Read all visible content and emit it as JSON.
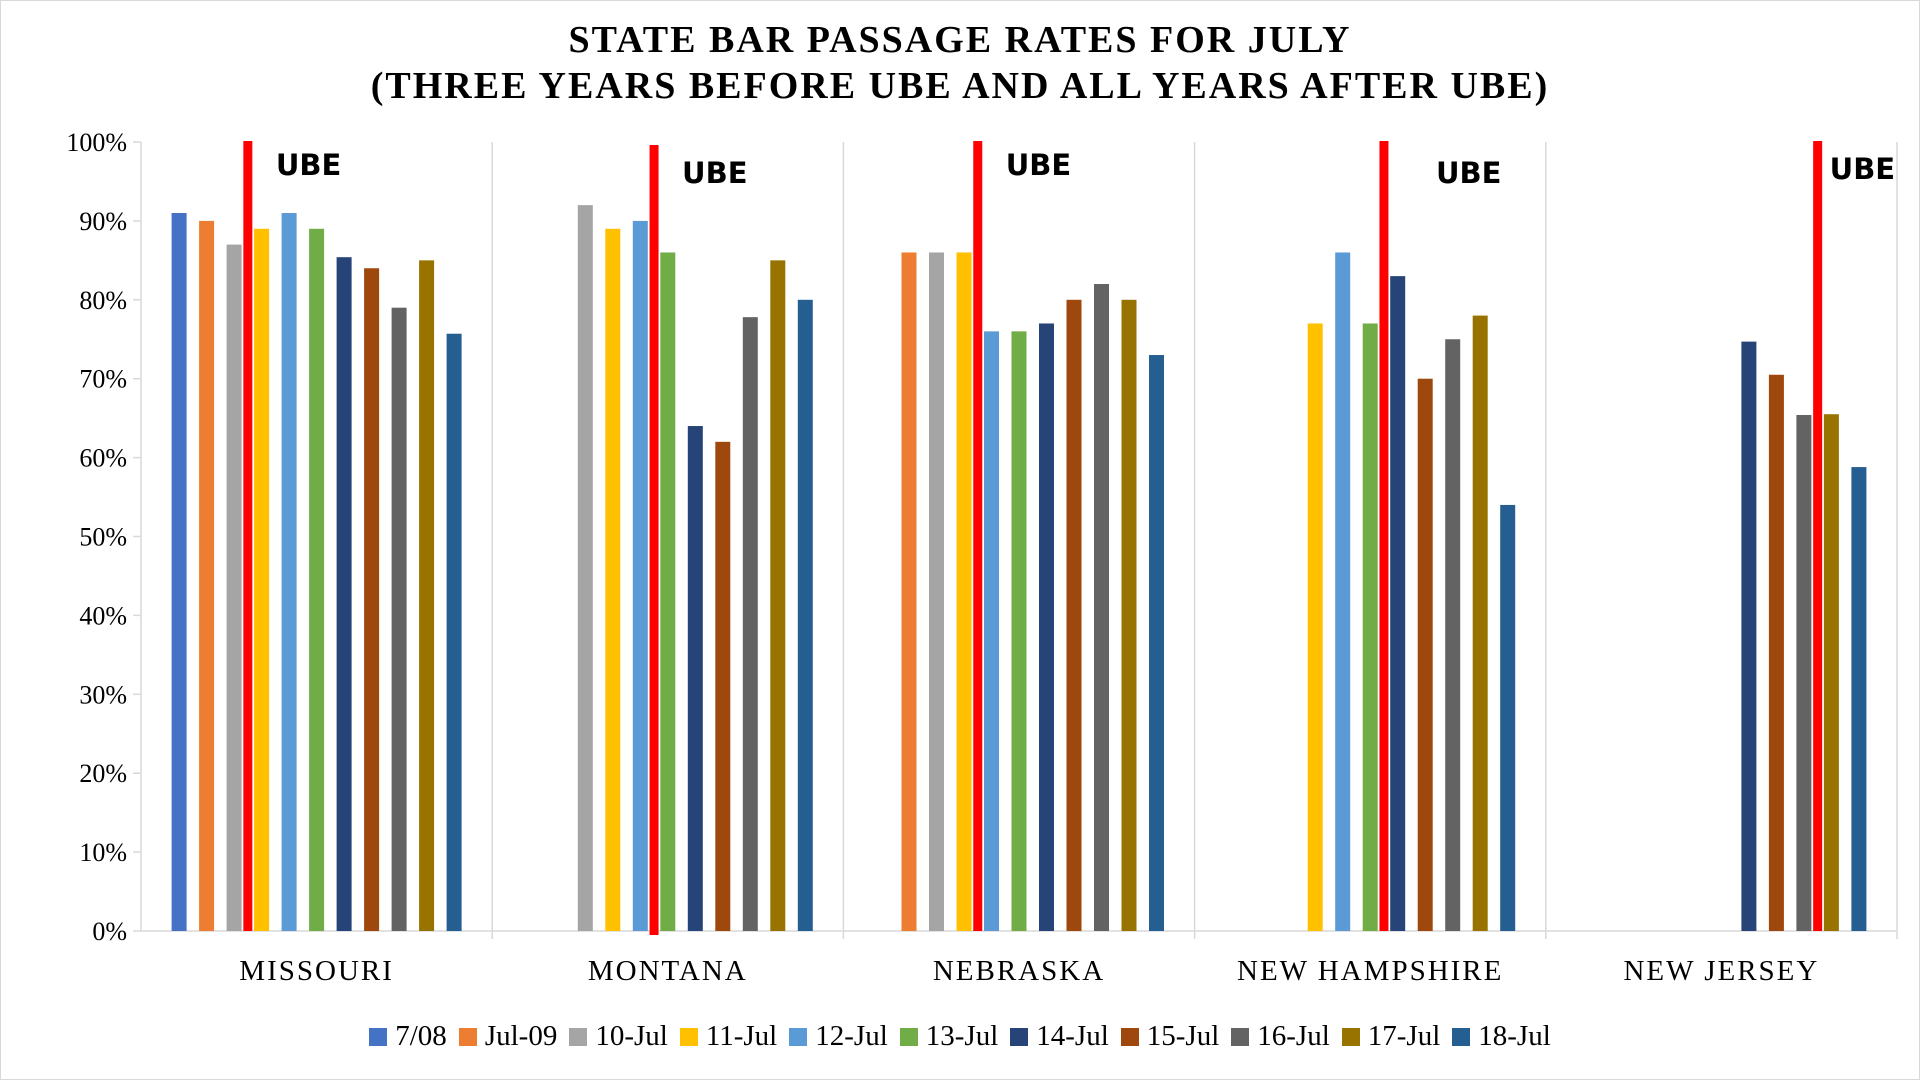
{
  "chart_data": {
    "type": "bar",
    "title": "STATE BAR PASSAGE RATES FOR JULY",
    "subtitle": "(THREE YEARS BEFORE UBE AND ALL YEARS AFTER UBE)",
    "xlabel": "",
    "ylabel": "",
    "ylim": [
      0,
      100
    ],
    "y_ticks": [
      "0%",
      "10%",
      "20%",
      "30%",
      "40%",
      "50%",
      "60%",
      "70%",
      "80%",
      "90%",
      "100%"
    ],
    "grid": "vertical category separators",
    "legend_position": "bottom",
    "categories": [
      "MISSOURI",
      "MONTANA",
      "NEBRASKA",
      "NEW HAMPSHIRE",
      "NEW JERSEY"
    ],
    "series": [
      {
        "name": "7/08",
        "color": "#4472C4",
        "values": [
          91,
          null,
          null,
          null,
          null
        ]
      },
      {
        "name": "Jul-09",
        "color": "#ED7D31",
        "values": [
          90,
          null,
          86,
          null,
          null
        ]
      },
      {
        "name": "10-Jul",
        "color": "#A5A5A5",
        "values": [
          87,
          92,
          86,
          null,
          null
        ]
      },
      {
        "name": "11-Jul",
        "color": "#FFC000",
        "values": [
          89,
          89,
          86,
          77,
          null
        ]
      },
      {
        "name": "12-Jul",
        "color": "#5B9BD5",
        "values": [
          91,
          90,
          76,
          86,
          null
        ]
      },
      {
        "name": "13-Jul",
        "color": "#70AD47",
        "values": [
          89,
          86,
          76,
          77,
          null
        ]
      },
      {
        "name": "14-Jul",
        "color": "#264478",
        "values": [
          85.4,
          64,
          77,
          83,
          74.7
        ]
      },
      {
        "name": "15-Jul",
        "color": "#9E480E",
        "values": [
          84,
          62,
          80,
          70,
          70.5
        ]
      },
      {
        "name": "16-Jul",
        "color": "#636363",
        "values": [
          79,
          77.8,
          82,
          75,
          65.4
        ]
      },
      {
        "name": "17-Jul",
        "color": "#997300",
        "values": [
          85,
          85,
          80,
          78,
          65.5
        ]
      },
      {
        "name": "18-Jul",
        "color": "#255E91",
        "values": [
          75.7,
          80,
          73,
          54,
          58.8
        ]
      }
    ],
    "annotations": [
      {
        "text": "UBE",
        "category": "MISSOURI",
        "after_series": "10-Jul",
        "line_color": "#FF0000"
      },
      {
        "text": "UBE",
        "category": "MONTANA",
        "after_series": "12-Jul",
        "line_color": "#FF0000"
      },
      {
        "text": "UBE",
        "category": "NEBRASKA",
        "after_series": "11-Jul",
        "line_color": "#FF0000"
      },
      {
        "text": "UBE",
        "category": "NEW HAMPSHIRE",
        "after_series": "13-Jul",
        "line_color": "#FF0000"
      },
      {
        "text": "UBE",
        "category": "NEW JERSEY",
        "after_series": "16-Jul",
        "line_color": "#FF0000"
      }
    ]
  }
}
